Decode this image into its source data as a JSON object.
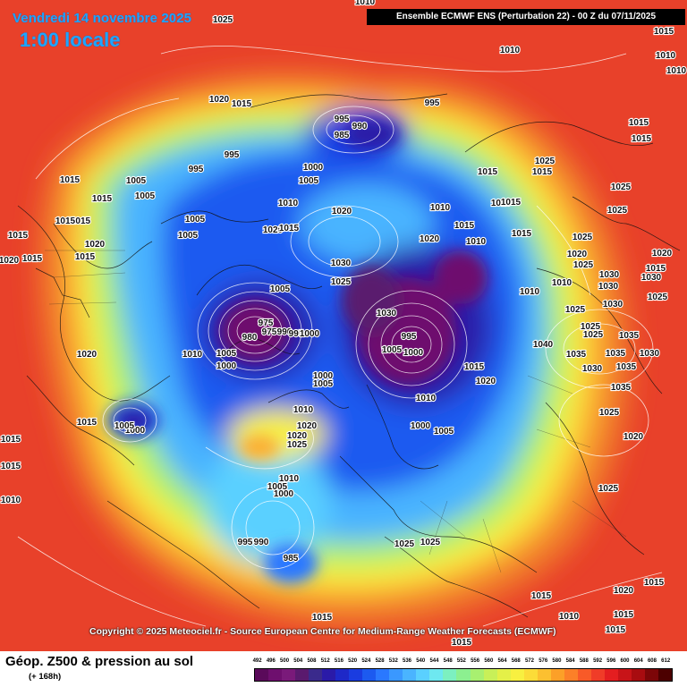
{
  "header": {
    "date": "Vendredi 14 novembre 2025",
    "time": "1:00 locale",
    "model": "Ensemble ECMWF ENS  (Perturbation 22)  - 00 Z du 07/11/2025"
  },
  "copyright": "Copyright © 2025 Meteociel.fr - Source European Centre for Medium-Range Weather Forecasts (ECMWF)",
  "footer": {
    "title": "Géop. Z500 & pression au sol",
    "subtitle": "(+ 168h)"
  },
  "legend": {
    "values": [
      "492",
      "496",
      "500",
      "504",
      "508",
      "512",
      "516",
      "520",
      "524",
      "528",
      "532",
      "536",
      "540",
      "544",
      "548",
      "552",
      "556",
      "560",
      "564",
      "568",
      "572",
      "576",
      "580",
      "584",
      "588",
      "592",
      "596",
      "600",
      "604",
      "608",
      "612"
    ],
    "colors": [
      "#5a0a5a",
      "#6e0f6e",
      "#7a1a7a",
      "#5a1a6e",
      "#3a2a8c",
      "#2a1aa8",
      "#1e28c8",
      "#1a3ce0",
      "#1c5af0",
      "#2a78ff",
      "#3a98ff",
      "#4ab4ff",
      "#5ad0ff",
      "#6ee8f0",
      "#7cf0c0",
      "#8cf090",
      "#a8f070",
      "#c8f058",
      "#e4f048",
      "#f8f040",
      "#fcdc38",
      "#fcc030",
      "#fca028",
      "#fc8028",
      "#f85a28",
      "#f03c28",
      "#e41e20",
      "#c81418",
      "#a80c10",
      "#7c0608",
      "#4c0000"
    ]
  },
  "isobars": [
    {
      "label": "1025"
    },
    {
      "label": "1010"
    },
    {
      "label": "1010"
    },
    {
      "label": "1010"
    },
    {
      "label": "1020"
    },
    {
      "label": "1015"
    },
    {
      "label": "995"
    },
    {
      "label": "990"
    },
    {
      "label": "985"
    },
    {
      "label": "995"
    },
    {
      "label": "995"
    },
    {
      "label": "995"
    },
    {
      "label": "1005"
    },
    {
      "label": "1005"
    },
    {
      "label": "1000"
    },
    {
      "label": "1005"
    },
    {
      "label": "1015"
    },
    {
      "label": "1015"
    },
    {
      "label": "1015"
    },
    {
      "label": "1015"
    },
    {
      "label": "1020"
    },
    {
      "label": "1015"
    },
    {
      "label": "1015"
    },
    {
      "label": "1015"
    },
    {
      "label": "1020"
    },
    {
      "label": "1015"
    },
    {
      "label": "1010"
    },
    {
      "label": "1005"
    },
    {
      "label": "1005"
    },
    {
      "label": "1020"
    },
    {
      "label": "1015"
    },
    {
      "label": "1020"
    },
    {
      "label": "1010"
    },
    {
      "label": "1010"
    },
    {
      "label": "1015"
    },
    {
      "label": "1020"
    },
    {
      "label": "1015"
    },
    {
      "label": "1015"
    },
    {
      "label": "1025"
    },
    {
      "label": "1025"
    },
    {
      "label": "1025"
    },
    {
      "label": "1025"
    },
    {
      "label": "1030"
    },
    {
      "label": "1025"
    },
    {
      "label": "1005"
    },
    {
      "label": "975"
    },
    {
      "label": "980"
    },
    {
      "label": "975"
    },
    {
      "label": "990"
    },
    {
      "label": "995"
    },
    {
      "label": "1000"
    },
    {
      "label": "995"
    },
    {
      "label": "1000"
    },
    {
      "label": "1005"
    },
    {
      "label": "1015"
    },
    {
      "label": "1020"
    },
    {
      "label": "1030"
    },
    {
      "label": "1040"
    },
    {
      "label": "1035"
    },
    {
      "label": "1035"
    },
    {
      "label": "1030"
    },
    {
      "label": "1020"
    },
    {
      "label": "1010"
    },
    {
      "label": "1020"
    },
    {
      "label": "1010"
    },
    {
      "label": "1000"
    },
    {
      "label": "1005"
    },
    {
      "label": "1000"
    },
    {
      "label": "1005"
    },
    {
      "label": "1010"
    },
    {
      "label": "1020"
    },
    {
      "label": "1025"
    },
    {
      "label": "1000"
    },
    {
      "label": "1005"
    },
    {
      "label": "1010"
    },
    {
      "label": "1005"
    },
    {
      "label": "1000"
    },
    {
      "label": "995"
    },
    {
      "label": "990"
    },
    {
      "label": "985"
    },
    {
      "label": "1005"
    },
    {
      "label": "1000"
    },
    {
      "label": "1015"
    },
    {
      "label": "1015"
    },
    {
      "label": "1025"
    },
    {
      "label": "1025"
    },
    {
      "label": "1025"
    },
    {
      "label": "1015"
    },
    {
      "label": "1010"
    },
    {
      "label": "1015"
    },
    {
      "label": "1015"
    },
    {
      "label": "1020"
    },
    {
      "label": "1015"
    },
    {
      "label": "1015"
    },
    {
      "label": "1025"
    },
    {
      "label": "1020"
    },
    {
      "label": "1015"
    },
    {
      "label": "1015"
    },
    {
      "label": "1020"
    },
    {
      "label": "1030"
    },
    {
      "label": "1030"
    },
    {
      "label": "1030"
    },
    {
      "label": "1035"
    },
    {
      "label": "1030"
    },
    {
      "label": "1025"
    },
    {
      "label": "1025"
    },
    {
      "label": "1020"
    },
    {
      "label": "1015"
    },
    {
      "label": "1015"
    },
    {
      "label": "1010"
    },
    {
      "label": "1010"
    },
    {
      "label": "1010"
    },
    {
      "label": "1015"
    },
    {
      "label": "1025"
    },
    {
      "label": "1025"
    },
    {
      "label": "1025"
    },
    {
      "label": "1015"
    },
    {
      "label": "1010"
    },
    {
      "label": "1010"
    },
    {
      "label": "1030"
    },
    {
      "label": "1035"
    },
    {
      "label": "1035"
    },
    {
      "label": "1015"
    }
  ]
}
